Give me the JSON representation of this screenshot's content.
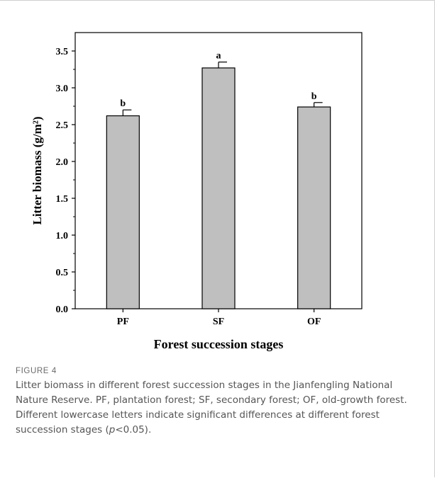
{
  "figure": {
    "label": "FIGURE 4",
    "caption_pre": "Litter biomass in different forest succession stages in the Jianfengling National Nature Reserve. PF, plantation forest; SF, secondary forest; OF, old-growth forest. Different lowercase letters indicate significant differences at different forest succession stages (",
    "caption_p": "p",
    "caption_post": "<0.05)."
  },
  "chart_data": {
    "type": "bar",
    "categories": [
      "PF",
      "SF",
      "OF"
    ],
    "values": [
      2.62,
      3.27,
      2.74
    ],
    "error_plus": [
      0.08,
      0.08,
      0.06
    ],
    "significance_letters": [
      "b",
      "a",
      "b"
    ],
    "xlabel": "Forest succession stages",
    "ylabel": "Litter biomass (g/m²)",
    "ylim": [
      0,
      3.75
    ],
    "yticks": [
      0.0,
      0.5,
      1.0,
      1.5,
      2.0,
      2.5,
      3.0,
      3.5
    ],
    "ytick_labels": [
      "0.0",
      "0.5",
      "1.0",
      "1.5",
      "2.0",
      "2.5",
      "3.0",
      "3.5"
    ],
    "bar_color": "#bfbfbf",
    "edge_color": "#000000",
    "grid": false
  }
}
